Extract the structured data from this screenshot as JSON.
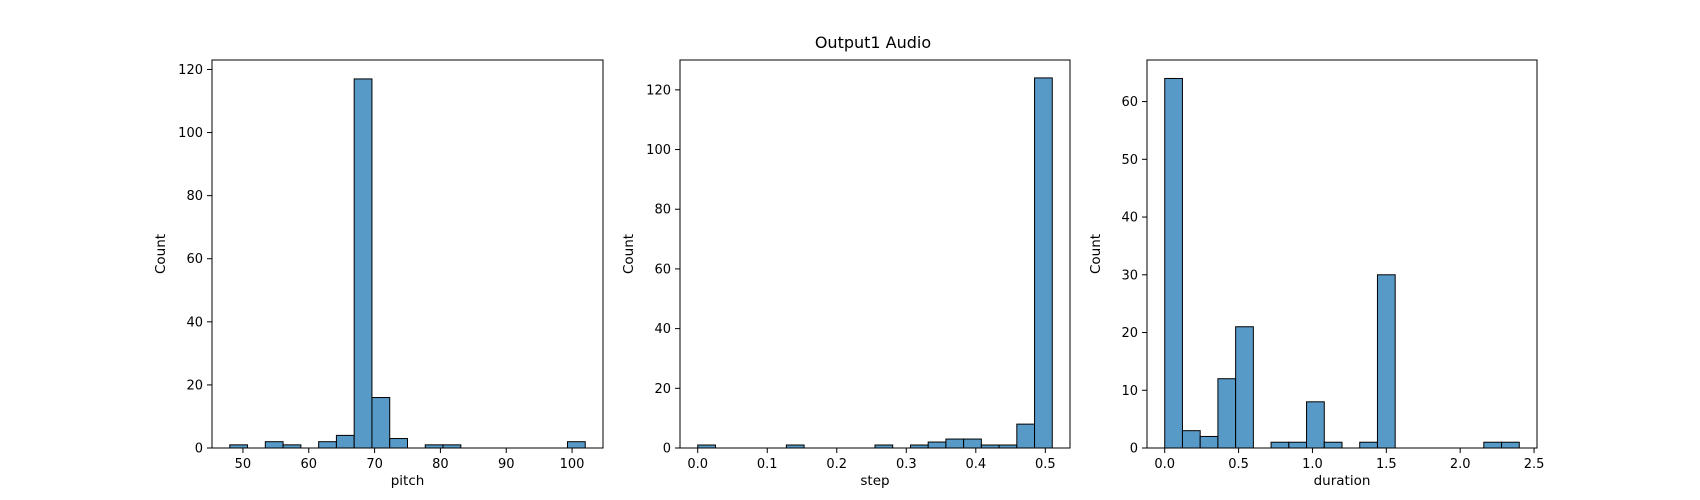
{
  "title": "Output1 Audio",
  "chart_data": [
    {
      "type": "bar",
      "subtype": "histogram",
      "xlabel": "pitch",
      "ylabel": "Count",
      "xlim": [
        45.3,
        104.7
      ],
      "ylim": [
        0,
        123
      ],
      "xticks": [
        50,
        60,
        70,
        80,
        90,
        100
      ],
      "yticks": [
        0,
        20,
        40,
        60,
        80,
        100,
        120
      ],
      "bin_edges": [
        48,
        50.7,
        53.4,
        56.1,
        58.8,
        61.5,
        64.2,
        66.9,
        69.6,
        72.3,
        75,
        77.7,
        80.4,
        83.1,
        85.8,
        88.5,
        91.2,
        93.9,
        96.6,
        99.3,
        102
      ],
      "values": [
        1,
        0,
        2,
        1,
        0,
        2,
        4,
        117,
        16,
        3,
        0,
        1,
        1,
        0,
        0,
        0,
        0,
        0,
        0,
        2
      ],
      "bar_color": "#5799c7",
      "edge_color": "#000000",
      "grid": false
    },
    {
      "type": "bar",
      "subtype": "histogram",
      "xlabel": "step",
      "ylabel": "Count",
      "xlim": [
        -0.0255,
        0.5355
      ],
      "ylim": [
        0,
        130
      ],
      "xticks": [
        0.0,
        0.1,
        0.2,
        0.3,
        0.4,
        0.5
      ],
      "yticks": [
        0,
        20,
        40,
        60,
        80,
        100,
        120
      ],
      "bin_edges": [
        0,
        0.0255,
        0.051,
        0.0765,
        0.102,
        0.1275,
        0.153,
        0.1785,
        0.204,
        0.2295,
        0.255,
        0.2805,
        0.306,
        0.3315,
        0.357,
        0.3825,
        0.408,
        0.4335,
        0.459,
        0.4845,
        0.51
      ],
      "values": [
        1,
        0,
        0,
        0,
        0,
        1,
        0,
        0,
        0,
        0,
        1,
        0,
        1,
        2,
        3,
        3,
        1,
        1,
        8,
        124
      ],
      "bar_color": "#5799c7",
      "edge_color": "#000000",
      "grid": false
    },
    {
      "type": "bar",
      "subtype": "histogram",
      "xlabel": "duration",
      "ylabel": "Count",
      "xlim": [
        -0.12,
        2.52
      ],
      "ylim": [
        0,
        67.2
      ],
      "xticks": [
        0.0,
        0.5,
        1.0,
        1.5,
        2.0,
        2.5
      ],
      "yticks": [
        0,
        10,
        20,
        30,
        40,
        50,
        60
      ],
      "bin_edges": [
        0,
        0.12,
        0.24,
        0.36,
        0.48,
        0.6,
        0.72,
        0.84,
        0.96,
        1.08,
        1.2,
        1.32,
        1.44,
        1.56,
        1.68,
        1.8,
        1.92,
        2.04,
        2.16,
        2.28,
        2.4
      ],
      "values": [
        64,
        3,
        2,
        12,
        21,
        0,
        1,
        1,
        8,
        1,
        0,
        1,
        30,
        0,
        0,
        0,
        0,
        0,
        1,
        1
      ],
      "bar_color": "#5799c7",
      "edge_color": "#000000",
      "grid": false
    }
  ]
}
